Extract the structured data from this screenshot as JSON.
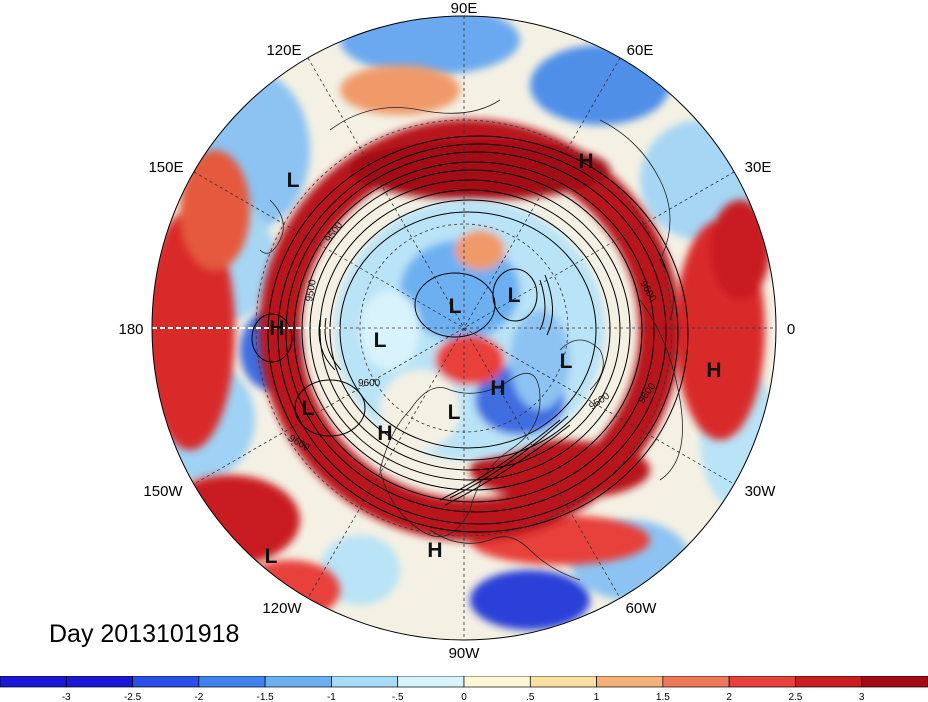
{
  "title": "Day 2013101918",
  "longitude_labels": {
    "deg90E": "90E",
    "deg120E": "120E",
    "deg60E": "60E",
    "deg150E": "150E",
    "deg30E": "30E",
    "deg180": "180",
    "deg0": "0",
    "deg150W": "150W",
    "deg30W": "30W",
    "deg120W": "120W",
    "deg60W": "60W",
    "deg90W": "90W"
  },
  "pressure_markers": [
    {
      "type": "H"
    },
    {
      "type": "L"
    },
    {
      "type": "H"
    },
    {
      "type": "L"
    },
    {
      "type": "L"
    },
    {
      "type": "L"
    },
    {
      "type": "L"
    },
    {
      "type": "H"
    },
    {
      "type": "L"
    },
    {
      "type": "H"
    },
    {
      "type": "L"
    },
    {
      "type": "H"
    },
    {
      "type": "H"
    },
    {
      "type": "L"
    }
  ],
  "contour_labels": [
    "9500",
    "9500",
    "9600",
    "9600",
    "9500",
    "9600",
    "9600"
  ],
  "colorbar": {
    "colors": [
      "#1a18d6",
      "#2a4fe8",
      "#3f83ef",
      "#6cb0f2",
      "#a6dcf7",
      "#d8f3fb",
      "#fbf8d4",
      "#f9e0a0",
      "#f7b07a",
      "#f0785a",
      "#e8403a",
      "#c91d20",
      "#a30a14"
    ],
    "tick_labels": [
      "-3",
      "-2.5",
      "-2",
      "-1.5",
      "-1",
      "-.5",
      "0",
      ".5",
      "1",
      "1.5",
      "2",
      "2.5",
      "3"
    ]
  }
}
